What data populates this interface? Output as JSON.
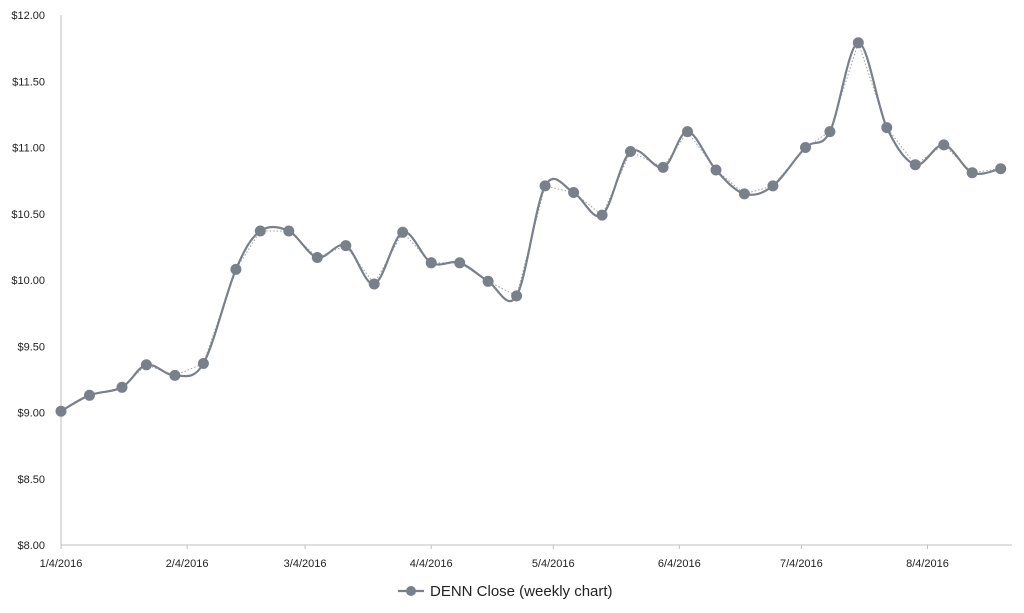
{
  "chart_data": {
    "type": "line",
    "title": "",
    "xlabel": "",
    "ylabel": "",
    "ylim": [
      8.0,
      12.0
    ],
    "y_ticks": [
      "$8.00",
      "$8.50",
      "$9.00",
      "$9.50",
      "$10.00",
      "$10.50",
      "$11.00",
      "$11.50",
      "$12.00"
    ],
    "x_ticks": [
      "1/4/2016",
      "2/4/2016",
      "3/4/2016",
      "4/4/2016",
      "5/4/2016",
      "6/4/2016",
      "7/4/2016",
      "8/4/2016"
    ],
    "x_range": [
      "2016-01-04",
      "2016-08-26"
    ],
    "grid": false,
    "legend_position": "bottom-center",
    "colors": {
      "series": "#7a808a",
      "trend": "#9a9ea6",
      "axis": "#bfbfbf"
    },
    "series": [
      {
        "name": "DENN Close (weekly chart)",
        "x": [
          "2016-01-04",
          "2016-01-11",
          "2016-01-19",
          "2016-01-25",
          "2016-02-01",
          "2016-02-08",
          "2016-02-16",
          "2016-02-22",
          "2016-02-29",
          "2016-03-07",
          "2016-03-14",
          "2016-03-21",
          "2016-03-28",
          "2016-04-04",
          "2016-04-11",
          "2016-04-18",
          "2016-04-25",
          "2016-05-02",
          "2016-05-09",
          "2016-05-16",
          "2016-05-23",
          "2016-05-31",
          "2016-06-06",
          "2016-06-13",
          "2016-06-20",
          "2016-06-27",
          "2016-07-05",
          "2016-07-11",
          "2016-07-18",
          "2016-07-25",
          "2016-08-01",
          "2016-08-08",
          "2016-08-15",
          "2016-08-22"
        ],
        "values": [
          9.01,
          9.13,
          9.19,
          9.36,
          9.28,
          9.37,
          10.08,
          10.37,
          10.37,
          10.17,
          10.26,
          9.97,
          10.36,
          10.13,
          10.13,
          9.99,
          9.88,
          10.71,
          10.66,
          10.49,
          10.97,
          10.85,
          11.12,
          10.83,
          10.65,
          10.71,
          11.0,
          11.12,
          11.79,
          11.15,
          10.87,
          11.02,
          10.81,
          10.84
        ]
      }
    ]
  }
}
